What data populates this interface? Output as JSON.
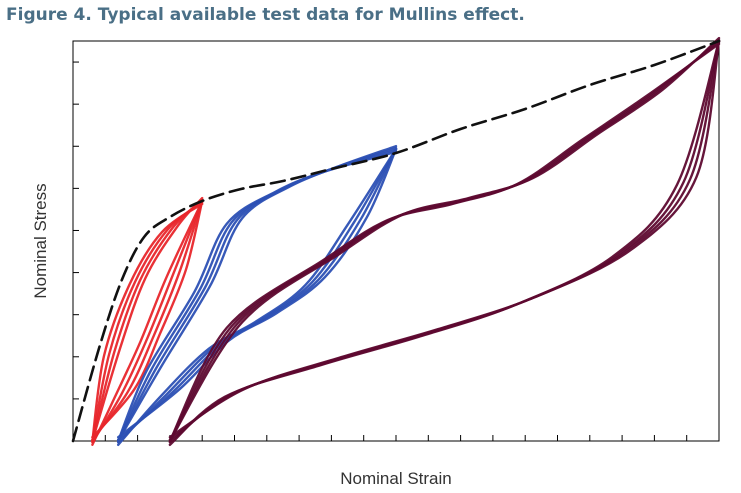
{
  "figure": {
    "title": "Figure 4. Typical available test data for Mullins effect."
  },
  "chart_data": {
    "type": "line",
    "title": "Figure 4. Typical available test data for Mullins effect.",
    "xlabel": "Nominal Strain",
    "ylabel": "Nominal Stress",
    "xlim": [
      0,
      20
    ],
    "ylim": [
      0,
      10
    ],
    "grid": false,
    "tick_labels_shown": false,
    "x_minor_ticks": 20,
    "y_minor_ticks": 9,
    "colors": {
      "envelope": "#111111",
      "cycle_1": "#e8262b",
      "cycle_2": "#2c50b4",
      "cycle_3": "#5e0a30"
    },
    "series": [
      {
        "role": "envelope",
        "style": "dashed",
        "x": [
          0,
          0.8,
          1.5,
          2.2,
          3.0,
          4.0,
          5.2,
          6.5,
          8.0,
          10.0,
          12.0,
          14.0,
          16.0,
          18.0,
          20.0
        ],
        "y": [
          0,
          2.3,
          4.0,
          5.1,
          5.6,
          6.0,
          6.3,
          6.5,
          6.8,
          7.2,
          7.8,
          8.3,
          8.9,
          9.4,
          10.0
        ]
      },
      {
        "role": "cycle_1",
        "max_x": 4.0,
        "max_y": 6.0,
        "loading": {
          "x": [
            0.6,
            1.2,
            2.0,
            3.0,
            4.0
          ],
          "y": [
            0,
            2.2,
            4.0,
            5.3,
            6.0
          ]
        },
        "unloading": {
          "x": [
            4.0,
            3.2,
            2.4,
            1.6,
            0.6
          ],
          "y": [
            6.0,
            4.2,
            2.6,
            1.2,
            0
          ]
        }
      },
      {
        "role": "cycle_2",
        "max_x": 10.0,
        "max_y": 7.3,
        "loading": {
          "x": [
            1.4,
            2.5,
            4.0,
            5.0,
            6.5,
            8.0,
            10.0
          ],
          "y": [
            0,
            1.8,
            3.8,
            5.5,
            6.3,
            6.8,
            7.3
          ]
        },
        "unloading": {
          "x": [
            10.0,
            8.8,
            7.5,
            6.0,
            4.5,
            3.0,
            1.4
          ],
          "y": [
            7.3,
            5.5,
            4.0,
            3.1,
            2.4,
            1.2,
            0
          ]
        }
      },
      {
        "role": "cycle_3",
        "max_x": 20.0,
        "max_y": 10.0,
        "loading": {
          "x": [
            3.0,
            5.0,
            8.0,
            10.0,
            12.0,
            14.0,
            16.0,
            18.0,
            20.0
          ],
          "y": [
            0,
            2.9,
            4.6,
            5.6,
            6.0,
            6.5,
            7.6,
            8.7,
            10.0
          ]
        },
        "unloading": {
          "x": [
            20.0,
            19.0,
            17.0,
            14.0,
            11.0,
            8.0,
            5.0,
            3.0
          ],
          "y": [
            10.0,
            6.5,
            4.7,
            3.5,
            2.7,
            2.0,
            1.2,
            0
          ]
        }
      }
    ]
  }
}
